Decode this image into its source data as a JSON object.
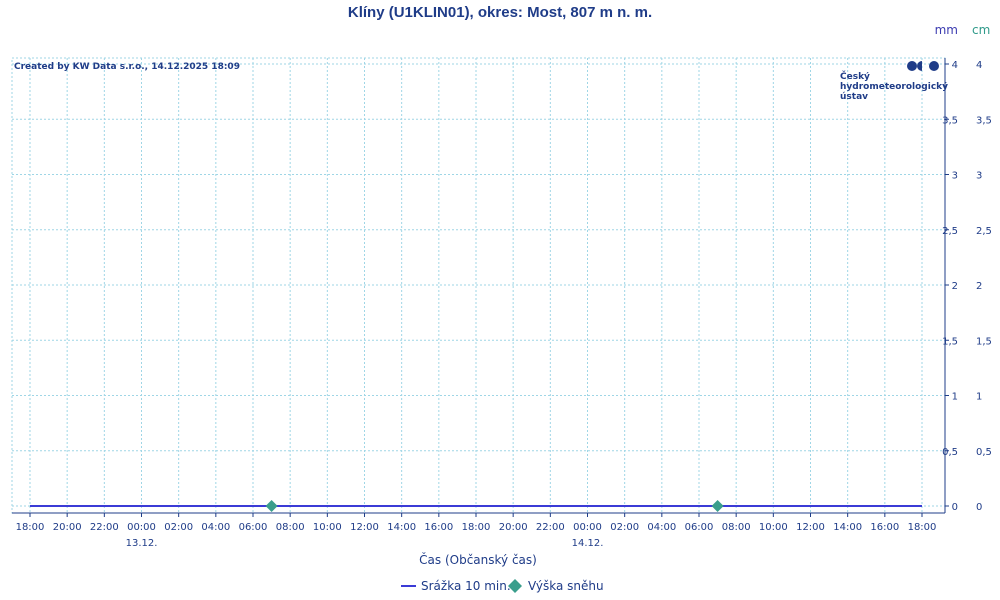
{
  "chart_data": {
    "type": "line",
    "title": "Klíny (U1KLIN01), okres: Most, 807 m n. m.",
    "created_by": "Created by KW Data s.r.o., 14.12.2025 18:09",
    "units": {
      "left": "mm",
      "right": "cm"
    },
    "xlabel": "Čas (Občanský čas)",
    "x_tick_labels": [
      "18:00",
      "20:00",
      "22:00",
      "00:00",
      "02:00",
      "04:00",
      "06:00",
      "08:00",
      "10:00",
      "12:00",
      "14:00",
      "16:00",
      "18:00",
      "20:00",
      "22:00",
      "00:00",
      "02:00",
      "04:00",
      "06:00",
      "08:00",
      "10:00",
      "12:00",
      "14:00",
      "16:00",
      "18:00"
    ],
    "date_labels": [
      {
        "label": "13.12.",
        "tick_index": 3
      },
      {
        "label": "14.12.",
        "tick_index": 15
      }
    ],
    "y_ticks": [
      "0",
      "0,5",
      "1",
      "1,5",
      "2",
      "2,5",
      "3",
      "3,5",
      "4"
    ],
    "ylim": [
      0,
      4
    ],
    "grid": true,
    "legend_placement": "bottom-center",
    "series": [
      {
        "name": "Srážka 10 min.",
        "color": "#3b3bd6",
        "x": [
          "12.12. 18:00",
          "14.12. 18:00"
        ],
        "values": [
          0,
          0
        ]
      },
      {
        "name": "Výška sněhu",
        "color": "#3a9e8c",
        "marker": "diamond",
        "x": [
          "13.12. 07:00",
          "14.12. 07:00"
        ],
        "values": [
          0,
          0
        ]
      }
    ],
    "logo": {
      "lines": [
        "Český",
        "hydrometeorologický",
        "ústav"
      ]
    }
  }
}
